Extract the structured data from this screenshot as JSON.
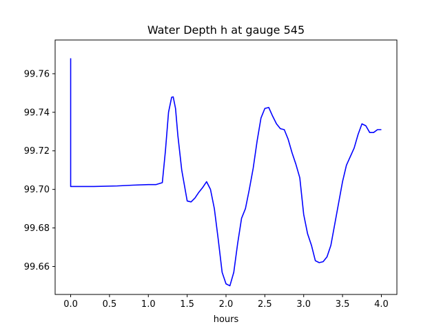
{
  "chart_data": {
    "type": "line",
    "title": "Water Depth h at gauge 545",
    "xlabel": "hours",
    "ylabel": "",
    "xlim": [
      -0.2,
      4.2
    ],
    "ylim": [
      99.6455,
      99.7775
    ],
    "xticks": [
      0.0,
      0.5,
      1.0,
      1.5,
      2.0,
      2.5,
      3.0,
      3.5,
      4.0
    ],
    "xtick_labels": [
      "0.0",
      "0.5",
      "1.0",
      "1.5",
      "2.0",
      "2.5",
      "3.0",
      "3.5",
      "4.0"
    ],
    "yticks": [
      99.66,
      99.68,
      99.7,
      99.72,
      99.74,
      99.76
    ],
    "ytick_labels": [
      "99.66",
      "99.68",
      "99.70",
      "99.72",
      "99.74",
      "99.76"
    ],
    "grid": false,
    "legend": "none",
    "series": [
      {
        "color": "#0000ff",
        "x": [
          0.0,
          0.0,
          0.05,
          0.3,
          0.6,
          0.8,
          1.0,
          1.1,
          1.18,
          1.22,
          1.26,
          1.3,
          1.32,
          1.35,
          1.38,
          1.43,
          1.5,
          1.55,
          1.6,
          1.65,
          1.7,
          1.75,
          1.8,
          1.85,
          1.9,
          1.95,
          2.0,
          2.05,
          2.1,
          2.15,
          2.2,
          2.25,
          2.3,
          2.35,
          2.4,
          2.45,
          2.5,
          2.55,
          2.6,
          2.65,
          2.7,
          2.75,
          2.8,
          2.85,
          2.9,
          2.95,
          3.0,
          3.05,
          3.1,
          3.15,
          3.2,
          3.25,
          3.3,
          3.35,
          3.4,
          3.45,
          3.5,
          3.55,
          3.6,
          3.65,
          3.7,
          3.75,
          3.8,
          3.85,
          3.9,
          3.95,
          4.0
        ],
        "y": [
          99.768,
          99.7015,
          99.7015,
          99.7015,
          99.7018,
          99.7022,
          99.7025,
          99.7025,
          99.7035,
          99.72,
          99.74,
          99.7478,
          99.748,
          99.742,
          99.728,
          99.71,
          99.694,
          99.6935,
          99.6955,
          99.6985,
          99.701,
          99.704,
          99.7,
          99.69,
          99.674,
          99.657,
          99.651,
          99.65,
          99.657,
          99.672,
          99.685,
          99.69,
          99.7,
          99.711,
          99.725,
          99.737,
          99.742,
          99.7425,
          99.738,
          99.734,
          99.7315,
          99.731,
          99.726,
          99.719,
          99.713,
          99.706,
          99.687,
          99.677,
          99.671,
          99.663,
          99.662,
          99.6625,
          99.665,
          99.671,
          99.682,
          99.693,
          99.704,
          99.7125,
          99.717,
          99.7215,
          99.7285,
          99.734,
          99.733,
          99.7295,
          99.7295,
          99.731,
          99.731
        ]
      }
    ]
  }
}
